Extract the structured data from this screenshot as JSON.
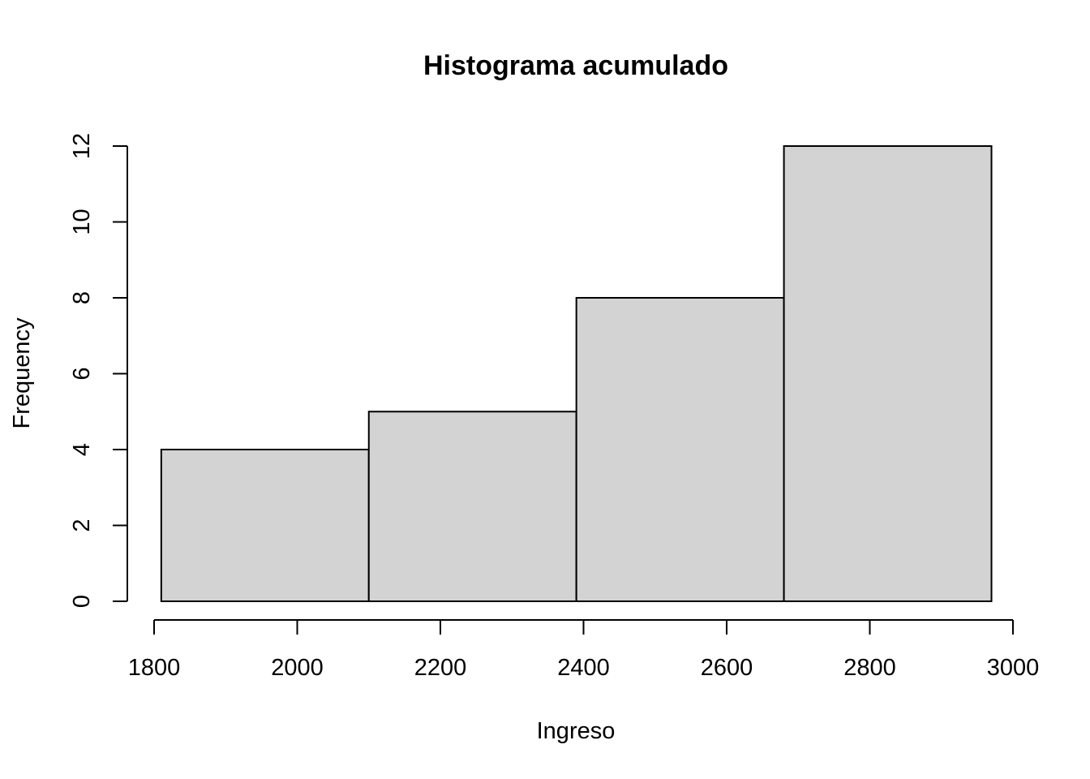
{
  "chart_data": {
    "type": "bar",
    "title": "Histograma acumulado",
    "xlabel": "Ingreso",
    "ylabel": "Frequency",
    "bins": [
      {
        "x0": 1810,
        "x1": 2100,
        "value": 4
      },
      {
        "x0": 2100,
        "x1": 2390,
        "value": 5
      },
      {
        "x0": 2390,
        "x1": 2680,
        "value": 8
      },
      {
        "x0": 2680,
        "x1": 2970,
        "value": 12
      }
    ],
    "x_ticks": [
      "1800",
      "2000",
      "2200",
      "2400",
      "2600",
      "2800",
      "3000"
    ],
    "y_ticks": [
      "0",
      "2",
      "4",
      "6",
      "8",
      "10",
      "12"
    ],
    "xlim": [
      1800,
      3000
    ],
    "ylim": [
      0,
      12
    ],
    "grid": false,
    "bar_color": "#d3d3d3"
  }
}
